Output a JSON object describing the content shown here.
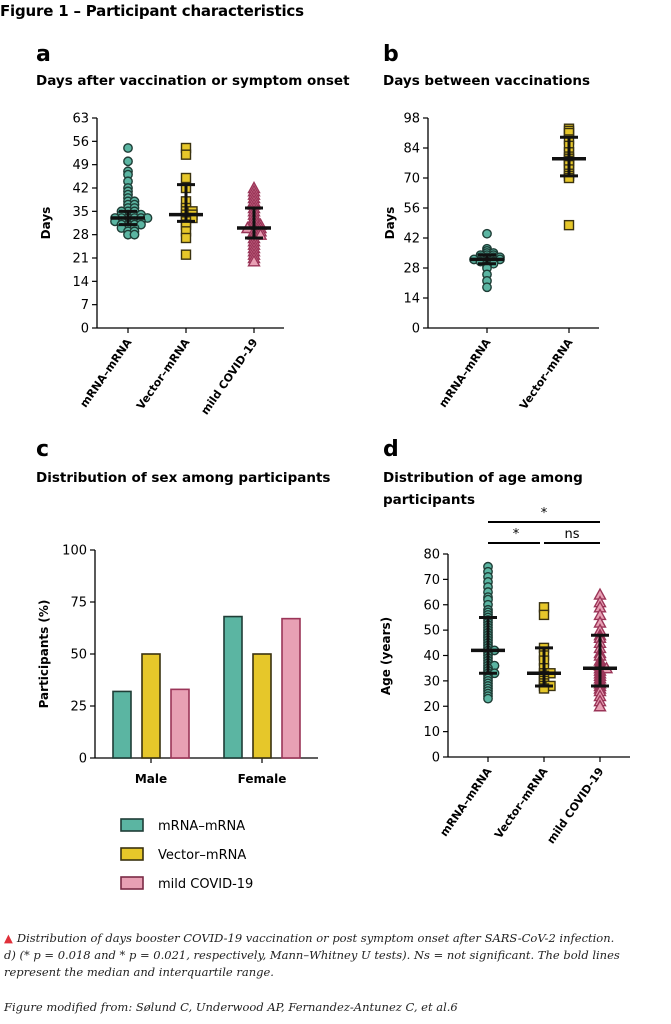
{
  "figure_title": "Figure 1 – Participant characteristics",
  "panels": {
    "a": {
      "letter": "a",
      "title": "Days after vaccination or symptom onset"
    },
    "b": {
      "letter": "b",
      "title": "Days between vaccinations"
    },
    "c": {
      "letter": "c",
      "title": "Distribution of sex among participants"
    },
    "d": {
      "letter": "d",
      "title": "Distribution of age among participants"
    }
  },
  "legend": [
    {
      "label": "mRNA–mRNA",
      "fill": "#5bb5a2",
      "stroke": "#1f3d36"
    },
    {
      "label": "Vector–mRNA",
      "fill": "#e6c72a",
      "stroke": "#3a3210"
    },
    {
      "label": "mild COVID-19",
      "fill": "#e8a0b4",
      "stroke": "#7a2a45"
    }
  ],
  "caption": {
    "line1": "Distribution of days booster COVID-19 vaccination or post symptom onset after SARS-CoV-2 infection.",
    "line2": "d) (* p = 0.018 and * p = 0.021, respectively, Mann–Whitney U tests). Ns = not significant. The bold lines represent the median and interquartile range.",
    "source": "Figure modified from: Sølund C, Underwood AP, Fernandez-Antunez C, et al.6"
  },
  "colors": {
    "mrna_fill": "#5bb5a2",
    "mrna_stroke": "#1f3d36",
    "vector_fill": "#e6c72a",
    "vector_stroke": "#3a3210",
    "covid_fill": "#e8a0b4",
    "covid_stroke": "#9b3558",
    "caption_arrow": "#e0303a"
  },
  "chart_data": [
    {
      "id": "a",
      "type": "scatter",
      "title": "Days after vaccination or symptom onset",
      "ylabel": "Days",
      "ylim": [
        0,
        63
      ],
      "yticks": [
        0,
        7,
        14,
        21,
        28,
        35,
        42,
        49,
        56,
        63
      ],
      "categories": [
        "mRNA–mRNA",
        "Vector–mRNA",
        "mild COVID-19"
      ],
      "series": [
        {
          "category": "mRNA–mRNA",
          "marker": "circle",
          "median": 33,
          "iqr": [
            31,
            35
          ],
          "values": [
            54,
            50,
            47,
            46,
            44,
            42,
            41,
            40,
            39,
            38,
            38,
            37,
            37,
            36,
            36,
            35,
            35,
            35,
            34,
            34,
            34,
            34,
            33,
            33,
            33,
            33,
            33,
            33,
            32,
            32,
            32,
            32,
            32,
            31,
            31,
            31,
            31,
            30,
            30,
            30,
            29,
            29,
            28,
            28
          ]
        },
        {
          "category": "Vector–mRNA",
          "marker": "square",
          "median": 34,
          "iqr": [
            32,
            43
          ],
          "values": [
            54,
            52,
            45,
            42,
            38,
            36,
            35,
            35,
            34,
            34,
            33,
            33,
            32,
            31,
            29,
            27,
            22
          ]
        },
        {
          "category": "mild COVID-19",
          "marker": "triangle",
          "median": 30,
          "iqr": [
            27,
            36
          ],
          "values": [
            42,
            41,
            40,
            39,
            38,
            37,
            36,
            35,
            34,
            33,
            32,
            31,
            31,
            30,
            30,
            30,
            29,
            29,
            28,
            28,
            27,
            26,
            25,
            24,
            23,
            22,
            21,
            20
          ]
        }
      ]
    },
    {
      "id": "b",
      "type": "scatter",
      "title": "Days between vaccinations",
      "ylabel": "Days",
      "ylim": [
        0,
        98
      ],
      "yticks": [
        0,
        14,
        28,
        42,
        56,
        70,
        84,
        98
      ],
      "categories": [
        "mRNA–mRNA",
        "Vector–mRNA"
      ],
      "series": [
        {
          "category": "mRNA–mRNA",
          "marker": "circle",
          "median": 32,
          "iqr": [
            30,
            34
          ],
          "values": [
            44,
            37,
            36,
            35,
            35,
            34,
            34,
            34,
            33,
            33,
            33,
            33,
            32,
            32,
            32,
            32,
            32,
            31,
            31,
            31,
            30,
            30,
            29,
            28,
            25,
            22,
            19
          ]
        },
        {
          "category": "Vector–mRNA",
          "marker": "square",
          "median": 79,
          "iqr": [
            71,
            89
          ],
          "values": [
            93,
            92,
            91,
            88,
            85,
            82,
            80,
            79,
            78,
            77,
            76,
            74,
            72,
            71,
            70,
            48
          ]
        }
      ]
    },
    {
      "id": "c",
      "type": "bar",
      "title": "Distribution of sex among participants",
      "ylabel": "Participants (%)",
      "ylim": [
        0,
        100
      ],
      "yticks": [
        0,
        25,
        50,
        75,
        100
      ],
      "categories": [
        "Male",
        "Female"
      ],
      "series": [
        {
          "name": "mRNA–mRNA",
          "values": [
            32,
            68
          ]
        },
        {
          "name": "Vector–mRNA",
          "values": [
            50,
            50
          ]
        },
        {
          "name": "mild COVID-19",
          "values": [
            33,
            67
          ]
        }
      ],
      "legend_position": "bottom"
    },
    {
      "id": "d",
      "type": "scatter",
      "title": "Distribution of age among participants",
      "ylabel": "Age (years)",
      "ylim": [
        0,
        80
      ],
      "yticks": [
        0,
        10,
        20,
        30,
        40,
        50,
        60,
        70,
        80
      ],
      "categories": [
        "mRNA–mRNA",
        "Vector–mRNA",
        "mild COVID-19"
      ],
      "series": [
        {
          "category": "mRNA–mRNA",
          "marker": "circle",
          "median": 42,
          "iqr": [
            33,
            55
          ],
          "values": [
            75,
            73,
            71,
            69,
            67,
            65,
            63,
            62,
            60,
            58,
            57,
            56,
            55,
            54,
            53,
            52,
            51,
            50,
            49,
            48,
            47,
            46,
            45,
            44,
            43,
            42,
            42,
            41,
            40,
            39,
            38,
            37,
            36,
            36,
            35,
            34,
            33,
            33,
            32,
            31,
            30,
            29,
            28,
            27,
            26,
            25,
            24,
            23
          ]
        },
        {
          "category": "Vector–mRNA",
          "marker": "square",
          "median": 33,
          "iqr": [
            28,
            43
          ],
          "values": [
            59,
            56,
            43,
            40,
            38,
            35,
            33,
            33,
            32,
            30,
            29,
            28,
            28,
            27
          ]
        },
        {
          "category": "mild COVID-19",
          "marker": "triangle",
          "median": 35,
          "iqr": [
            28,
            48
          ],
          "values": [
            64,
            61,
            59,
            56,
            53,
            50,
            48,
            47,
            45,
            43,
            41,
            40,
            38,
            37,
            36,
            35,
            35,
            34,
            33,
            32,
            31,
            30,
            29,
            28,
            27,
            26,
            24,
            22,
            20
          ]
        }
      ],
      "significance": [
        {
          "from": "mRNA–mRNA",
          "to": "Vector–mRNA",
          "label": "*"
        },
        {
          "from": "Vector–mRNA",
          "to": "mild COVID-19",
          "label": "ns"
        },
        {
          "from": "mRNA–mRNA",
          "to": "mild COVID-19",
          "label": "*"
        }
      ]
    }
  ]
}
